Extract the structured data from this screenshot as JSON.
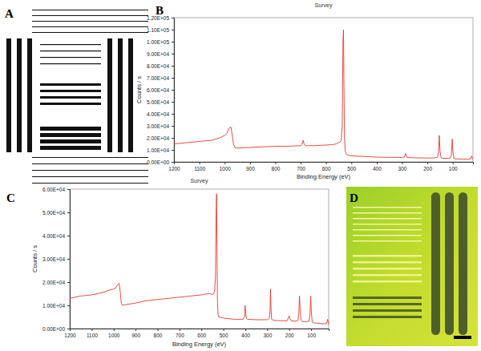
{
  "chart_data": [
    {
      "type": "line",
      "title": "Survey",
      "x_label": "Binding Energy (eV)",
      "y_label": "Counts / s",
      "color": "#e5392f",
      "x": [
        1200,
        1150,
        1100,
        1050,
        1020,
        1000,
        990,
        985,
        980,
        975,
        970,
        965,
        960,
        950,
        900,
        850,
        800,
        750,
        700,
        695,
        690,
        686,
        680,
        650,
        600,
        570,
        560,
        550,
        545,
        540,
        536,
        533,
        531,
        529,
        527,
        524,
        520,
        510,
        500,
        450,
        400,
        350,
        300,
        290,
        286,
        284,
        280,
        270,
        250,
        200,
        170,
        160,
        156,
        153,
        150,
        146,
        140,
        120,
        110,
        105,
        102,
        99,
        95,
        90,
        80,
        60,
        40,
        30,
        25,
        22,
        20
      ],
      "values": [
        15000,
        16000,
        17000,
        18000,
        20000,
        22000,
        24000,
        27000,
        28500,
        29000,
        22000,
        15000,
        12000,
        11500,
        12000,
        12500,
        13000,
        13000,
        13500,
        14500,
        18000,
        14500,
        13500,
        13500,
        14000,
        14500,
        15000,
        16000,
        16500,
        18000,
        30000,
        100000,
        110000,
        60000,
        20000,
        9000,
        6500,
        5500,
        5000,
        4500,
        4000,
        3800,
        3700,
        4000,
        7000,
        6000,
        3800,
        3500,
        3400,
        3200,
        3300,
        4000,
        8000,
        22000,
        9000,
        3500,
        3000,
        3000,
        3200,
        6000,
        19000,
        8000,
        2800,
        2500,
        2400,
        2300,
        2200,
        2500,
        5000,
        3000,
        2000
      ],
      "xlim": [
        1200,
        20
      ],
      "xticks": [
        1200,
        1100,
        1000,
        900,
        800,
        700,
        600,
        500,
        400,
        300,
        200,
        100
      ],
      "ylim": [
        0,
        120000
      ],
      "yticks": [
        {
          "value": 0,
          "label": "0.00E+00"
        },
        {
          "value": 10000,
          "label": "1.00E+04"
        },
        {
          "value": 20000,
          "label": "2.00E+04"
        },
        {
          "value": 30000,
          "label": "3.00E+04"
        },
        {
          "value": 40000,
          "label": "4.00E+04"
        },
        {
          "value": 50000,
          "label": "5.00E+04"
        },
        {
          "value": 60000,
          "label": "6.00E+04"
        },
        {
          "value": 70000,
          "label": "7.00E+04"
        },
        {
          "value": 80000,
          "label": "8.00E+04"
        },
        {
          "value": 90000,
          "label": "9.00E+04"
        },
        {
          "value": 100000,
          "label": "1.00E+05"
        },
        {
          "value": 110000,
          "label": "1.10E+05"
        },
        {
          "value": 120000,
          "label": "1.20E+05"
        }
      ]
    },
    {
      "type": "line",
      "title": "Survey",
      "x_label": "Binding Energy (eV)",
      "y_label": "Counts / s",
      "color": "#e5392f",
      "x": [
        1200,
        1150,
        1100,
        1050,
        1020,
        1000,
        990,
        985,
        980,
        975,
        970,
        965,
        960,
        950,
        900,
        850,
        800,
        750,
        700,
        650,
        600,
        570,
        560,
        550,
        545,
        540,
        536,
        533,
        531,
        529,
        527,
        524,
        520,
        510,
        500,
        450,
        410,
        404,
        401,
        399,
        396,
        390,
        350,
        300,
        290,
        287,
        285,
        283,
        280,
        270,
        250,
        210,
        202,
        200,
        198,
        190,
        170,
        160,
        156,
        153,
        150,
        146,
        140,
        120,
        110,
        105,
        102,
        99,
        95,
        90,
        80,
        60,
        40,
        30,
        25,
        22,
        20
      ],
      "values": [
        13000,
        14000,
        14500,
        15500,
        16500,
        17000,
        17500,
        18500,
        19000,
        19500,
        16000,
        11000,
        10000,
        10200,
        11000,
        12000,
        12500,
        13000,
        13500,
        14000,
        14500,
        15000,
        15000,
        14500,
        15000,
        16000,
        22000,
        50000,
        58000,
        35000,
        12000,
        6000,
        5000,
        4800,
        4500,
        4000,
        4000,
        5000,
        10000,
        8000,
        4500,
        4000,
        3800,
        3800,
        4500,
        8000,
        17000,
        9000,
        4000,
        3500,
        3400,
        3300,
        5000,
        5500,
        4500,
        3300,
        3200,
        3500,
        7000,
        14000,
        8000,
        3500,
        3000,
        3000,
        3200,
        6000,
        14000,
        7000,
        2800,
        2500,
        2400,
        2200,
        2000,
        2200,
        4000,
        2500,
        1500
      ],
      "xlim": [
        1200,
        20
      ],
      "xticks": [
        1200,
        1100,
        1000,
        900,
        800,
        700,
        600,
        500,
        400,
        300,
        200,
        100
      ],
      "ylim": [
        0,
        60000
      ],
      "yticks": [
        {
          "value": 0,
          "label": "0.00E+00"
        },
        {
          "value": 10000,
          "label": "1.00E+04"
        },
        {
          "value": 20000,
          "label": "2.00E+04"
        },
        {
          "value": 30000,
          "label": "3.00E+04"
        },
        {
          "value": 40000,
          "label": "4.00E+04"
        },
        {
          "value": 50000,
          "label": "5.00E+04"
        },
        {
          "value": 60000,
          "label": "6.00E+04"
        }
      ]
    }
  ],
  "panel_labels": [
    "A",
    "B",
    "C",
    "D"
  ]
}
